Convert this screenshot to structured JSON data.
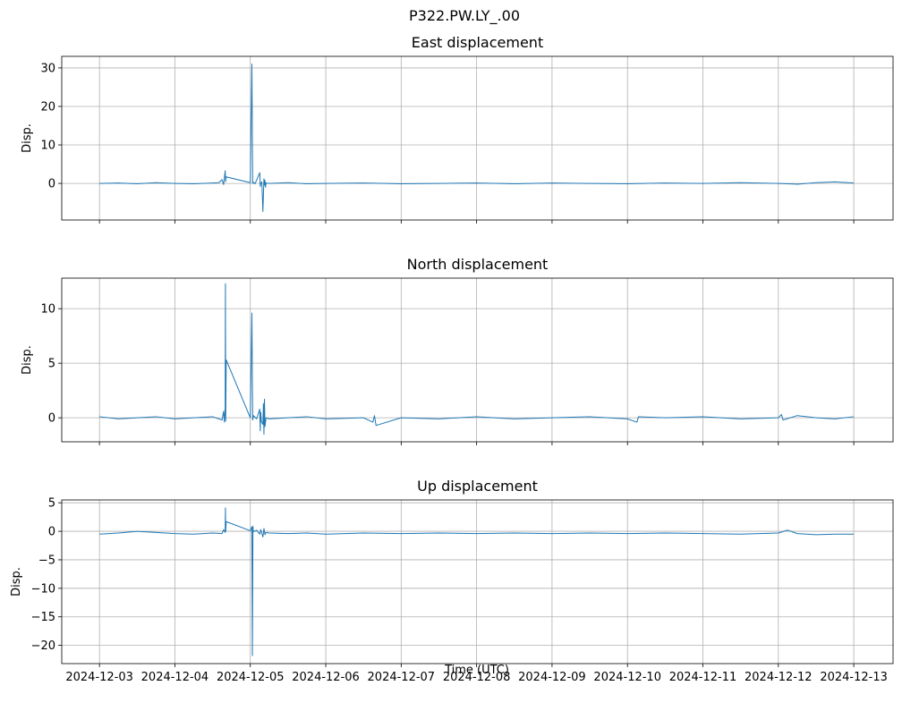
{
  "figure": {
    "suptitle": "P322.PW.LY_.00",
    "xlabel": "Time (UTC)"
  },
  "chart_data": [
    {
      "type": "line",
      "title": "East displacement",
      "ylabel": "Disp.",
      "xlim": [
        "2024-12-02T12:00",
        "2024-12-13T12:30"
      ],
      "ylim": [
        -9.5,
        33
      ],
      "yticks": [
        0,
        10,
        20,
        30
      ],
      "x_ticks": [
        "2024-12-03",
        "2024-12-04",
        "2024-12-05",
        "2024-12-06",
        "2024-12-07",
        "2024-12-08",
        "2024-12-09",
        "2024-12-10",
        "2024-12-11",
        "2024-12-12",
        "2024-12-13"
      ],
      "grid": true,
      "color": "#1f77b4",
      "series": [
        {
          "x": [
            "2024-12-03T00:00",
            "2024-12-03T06:00",
            "2024-12-03T12:00",
            "2024-12-03T18:00",
            "2024-12-04T00:00",
            "2024-12-04T06:00",
            "2024-12-04T12:00",
            "2024-12-04T14:00",
            "2024-12-04T14:30",
            "2024-12-04T15:00",
            "2024-12-04T15:30",
            "2024-12-04T16:00",
            "2024-12-04T16:10",
            "2024-12-04T16:20",
            "2024-12-05T00:00",
            "2024-12-05T00:30",
            "2024-12-05T00:45",
            "2024-12-05T01:00",
            "2024-12-05T01:30",
            "2024-12-05T03:00",
            "2024-12-05T03:10",
            "2024-12-05T03:20",
            "2024-12-05T03:40",
            "2024-12-05T04:00",
            "2024-12-05T04:20",
            "2024-12-05T04:30",
            "2024-12-05T04:40",
            "2024-12-05T04:50",
            "2024-12-05T05:00",
            "2024-12-05T06:00",
            "2024-12-05T12:00",
            "2024-12-05T18:00",
            "2024-12-06T00:00",
            "2024-12-06T12:00",
            "2024-12-07T00:00",
            "2024-12-07T12:00",
            "2024-12-08T00:00",
            "2024-12-08T12:00",
            "2024-12-09T00:00",
            "2024-12-09T12:00",
            "2024-12-10T00:00",
            "2024-12-10T12:00",
            "2024-12-11T00:00",
            "2024-12-11T12:00",
            "2024-12-12T00:00",
            "2024-12-12T06:00",
            "2024-12-12T12:00",
            "2024-12-12T18:00",
            "2024-12-13T00:00"
          ],
          "y": [
            0.0,
            0.1,
            -0.1,
            0.2,
            0.0,
            -0.1,
            0.1,
            0.2,
            0.6,
            1.0,
            -0.3,
            3.3,
            0.5,
            1.7,
            0.2,
            31.0,
            0.0,
            0.3,
            -0.1,
            2.8,
            -0.8,
            0.1,
            0.4,
            -7.3,
            1.2,
            -0.4,
            0.8,
            -1.0,
            0.1,
            0.0,
            0.2,
            -0.1,
            0.0,
            0.1,
            -0.1,
            0.0,
            0.1,
            -0.1,
            0.1,
            0.0,
            -0.1,
            0.1,
            0.0,
            0.2,
            0.0,
            -0.2,
            0.2,
            0.4,
            0.1
          ]
        }
      ]
    },
    {
      "type": "line",
      "title": "North displacement",
      "ylabel": "Disp.",
      "xlim": [
        "2024-12-02T12:00",
        "2024-12-13T12:30"
      ],
      "ylim": [
        -2.2,
        12.8
      ],
      "yticks": [
        0,
        5,
        10
      ],
      "x_ticks": [
        "2024-12-03",
        "2024-12-04",
        "2024-12-05",
        "2024-12-06",
        "2024-12-07",
        "2024-12-08",
        "2024-12-09",
        "2024-12-10",
        "2024-12-11",
        "2024-12-12",
        "2024-12-13"
      ],
      "grid": true,
      "color": "#1f77b4",
      "series": [
        {
          "x": [
            "2024-12-03T00:00",
            "2024-12-03T06:00",
            "2024-12-03T12:00",
            "2024-12-03T18:00",
            "2024-12-04T00:00",
            "2024-12-04T06:00",
            "2024-12-04T12:00",
            "2024-12-04T15:00",
            "2024-12-04T15:30",
            "2024-12-04T15:45",
            "2024-12-04T16:00",
            "2024-12-04T16:05",
            "2024-12-04T16:10",
            "2024-12-04T16:20",
            "2024-12-05T00:00",
            "2024-12-05T00:30",
            "2024-12-05T00:45",
            "2024-12-05T01:00",
            "2024-12-05T02:00",
            "2024-12-05T03:00",
            "2024-12-05T03:10",
            "2024-12-05T03:20",
            "2024-12-05T03:30",
            "2024-12-05T04:00",
            "2024-12-05T04:10",
            "2024-12-05T04:20",
            "2024-12-05T04:30",
            "2024-12-05T04:40",
            "2024-12-05T05:00",
            "2024-12-05T06:00",
            "2024-12-05T12:00",
            "2024-12-05T18:00",
            "2024-12-06T00:00",
            "2024-12-06T12:00",
            "2024-12-06T15:00",
            "2024-12-06T15:30",
            "2024-12-06T16:00",
            "2024-12-07T00:00",
            "2024-12-07T12:00",
            "2024-12-08T00:00",
            "2024-12-08T12:00",
            "2024-12-09T00:00",
            "2024-12-09T12:00",
            "2024-12-10T00:00",
            "2024-12-10T03:00",
            "2024-12-10T03:30",
            "2024-12-10T12:00",
            "2024-12-11T00:00",
            "2024-12-11T12:00",
            "2024-12-12T00:00",
            "2024-12-12T01:00",
            "2024-12-12T01:30",
            "2024-12-12T06:00",
            "2024-12-12T12:00",
            "2024-12-12T18:00",
            "2024-12-13T00:00"
          ],
          "y": [
            0.1,
            -0.1,
            0.0,
            0.1,
            -0.1,
            0.0,
            0.1,
            -0.2,
            0.6,
            -0.4,
            1.0,
            12.3,
            -0.3,
            5.3,
            0.0,
            9.6,
            -0.2,
            0.2,
            -0.1,
            0.8,
            -1.2,
            0.5,
            -0.3,
            -0.6,
            1.3,
            -1.5,
            1.7,
            -0.8,
            0.0,
            -0.1,
            0.0,
            0.1,
            -0.1,
            0.0,
            -0.4,
            0.2,
            -0.7,
            0.0,
            -0.1,
            0.1,
            -0.1,
            0.0,
            0.1,
            -0.1,
            -0.4,
            0.1,
            0.0,
            0.1,
            -0.1,
            0.0,
            0.3,
            -0.2,
            0.2,
            0.0,
            -0.1,
            0.1
          ]
        }
      ]
    },
    {
      "type": "line",
      "title": "Up displacement",
      "ylabel": "Disp.",
      "xlim": [
        "2024-12-02T12:00",
        "2024-12-13T12:30"
      ],
      "ylim": [
        -23.2,
        5.5
      ],
      "yticks": [
        5,
        0,
        -5,
        -10,
        -15,
        -20
      ],
      "x_ticks": [
        "2024-12-03",
        "2024-12-04",
        "2024-12-05",
        "2024-12-06",
        "2024-12-07",
        "2024-12-08",
        "2024-12-09",
        "2024-12-10",
        "2024-12-11",
        "2024-12-12",
        "2024-12-13"
      ],
      "grid": true,
      "color": "#1f77b4",
      "series": [
        {
          "x": [
            "2024-12-03T00:00",
            "2024-12-03T06:00",
            "2024-12-03T12:00",
            "2024-12-03T18:00",
            "2024-12-04T00:00",
            "2024-12-04T06:00",
            "2024-12-04T12:00",
            "2024-12-04T15:00",
            "2024-12-04T15:30",
            "2024-12-04T16:00",
            "2024-12-04T16:05",
            "2024-12-04T16:10",
            "2024-12-04T16:20",
            "2024-12-05T00:00",
            "2024-12-05T00:30",
            "2024-12-05T00:40",
            "2024-12-05T00:50",
            "2024-12-05T01:00",
            "2024-12-05T02:00",
            "2024-12-05T03:00",
            "2024-12-05T03:20",
            "2024-12-05T04:00",
            "2024-12-05T04:20",
            "2024-12-05T04:40",
            "2024-12-05T05:00",
            "2024-12-05T06:00",
            "2024-12-05T12:00",
            "2024-12-05T18:00",
            "2024-12-06T00:00",
            "2024-12-06T12:00",
            "2024-12-07T00:00",
            "2024-12-07T12:00",
            "2024-12-08T00:00",
            "2024-12-08T12:00",
            "2024-12-09T00:00",
            "2024-12-09T12:00",
            "2024-12-10T00:00",
            "2024-12-10T12:00",
            "2024-12-11T00:00",
            "2024-12-11T12:00",
            "2024-12-12T00:00",
            "2024-12-12T03:00",
            "2024-12-12T06:00",
            "2024-12-12T12:00",
            "2024-12-12T18:00",
            "2024-12-13T00:00"
          ],
          "y": [
            -0.5,
            -0.3,
            0.0,
            -0.2,
            -0.4,
            -0.5,
            -0.3,
            -0.4,
            0.3,
            -0.2,
            4.1,
            0.0,
            1.7,
            0.1,
            0.8,
            -21.8,
            0.9,
            -0.1,
            0.2,
            -0.5,
            0.3,
            -1.0,
            0.5,
            -0.6,
            -0.2,
            -0.3,
            -0.4,
            -0.3,
            -0.5,
            -0.3,
            -0.4,
            -0.3,
            -0.4,
            -0.3,
            -0.4,
            -0.3,
            -0.4,
            -0.3,
            -0.4,
            -0.5,
            -0.3,
            0.2,
            -0.4,
            -0.6,
            -0.5,
            -0.5
          ]
        }
      ]
    }
  ]
}
